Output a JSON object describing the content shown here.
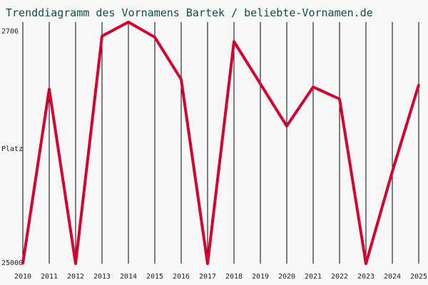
{
  "chart_data": {
    "type": "line",
    "title": "Trenddiagramm des Vornamens Bartek / beliebte-Vornamen.de",
    "ylabel": "Platz",
    "x": [
      2010,
      2011,
      2012,
      2013,
      2014,
      2015,
      2016,
      2017,
      2018,
      2019,
      2020,
      2021,
      2022,
      2023,
      2024,
      2025
    ],
    "y": [
      25000,
      8900,
      25000,
      4000,
      2706,
      4100,
      8000,
      25000,
      4500,
      8400,
      12300,
      8700,
      9800,
      25000,
      16500,
      8500
    ],
    "y_top_label": "2706",
    "y_bottom_label": "25000",
    "ylim": [
      25000,
      2706
    ],
    "y_reversed": true,
    "grid": "vertical",
    "line_color": "#d4002f",
    "grid_color": "#000000",
    "title_color": "#0f4c4c",
    "background": "#f8f8f8"
  }
}
